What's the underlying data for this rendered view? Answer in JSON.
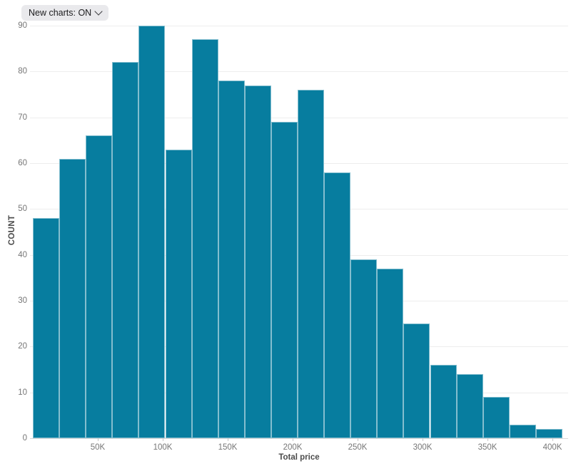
{
  "controls": {
    "new_charts_chip": {
      "label": "New charts: ON"
    }
  },
  "icons": {
    "chevron_down": "chevron-down"
  },
  "colors": {
    "bar_fill": "#077d9f",
    "bar_stroke": "rgba(255,255,255,0.5)",
    "gridline": "#ededed",
    "axis_line": "#d8d8d8",
    "tick_label": "#767676",
    "axis_title": "#4c4c4c",
    "chip_bg": "#e9e9ec",
    "chip_text": "#1b1b1d"
  },
  "chart_data": {
    "type": "bar",
    "subtype": "histogram",
    "title": "",
    "xlabel": "Total price",
    "ylabel": "COUNT",
    "x_tick_labels": [
      "50K",
      "100K",
      "150K",
      "200K",
      "250K",
      "300K",
      "350K",
      "400K"
    ],
    "y_ticks": [
      0,
      10,
      20,
      30,
      40,
      50,
      60,
      70,
      80,
      90
    ],
    "ylim": [
      0,
      90
    ],
    "x_range": [
      "0",
      "400K"
    ],
    "bin_width_approx": "20K",
    "values": [
      48,
      61,
      66,
      82,
      90,
      63,
      87,
      78,
      77,
      69,
      76,
      58,
      39,
      37,
      25,
      16,
      14,
      9,
      3,
      2
    ],
    "legend": "none",
    "grid": "horizontal"
  }
}
